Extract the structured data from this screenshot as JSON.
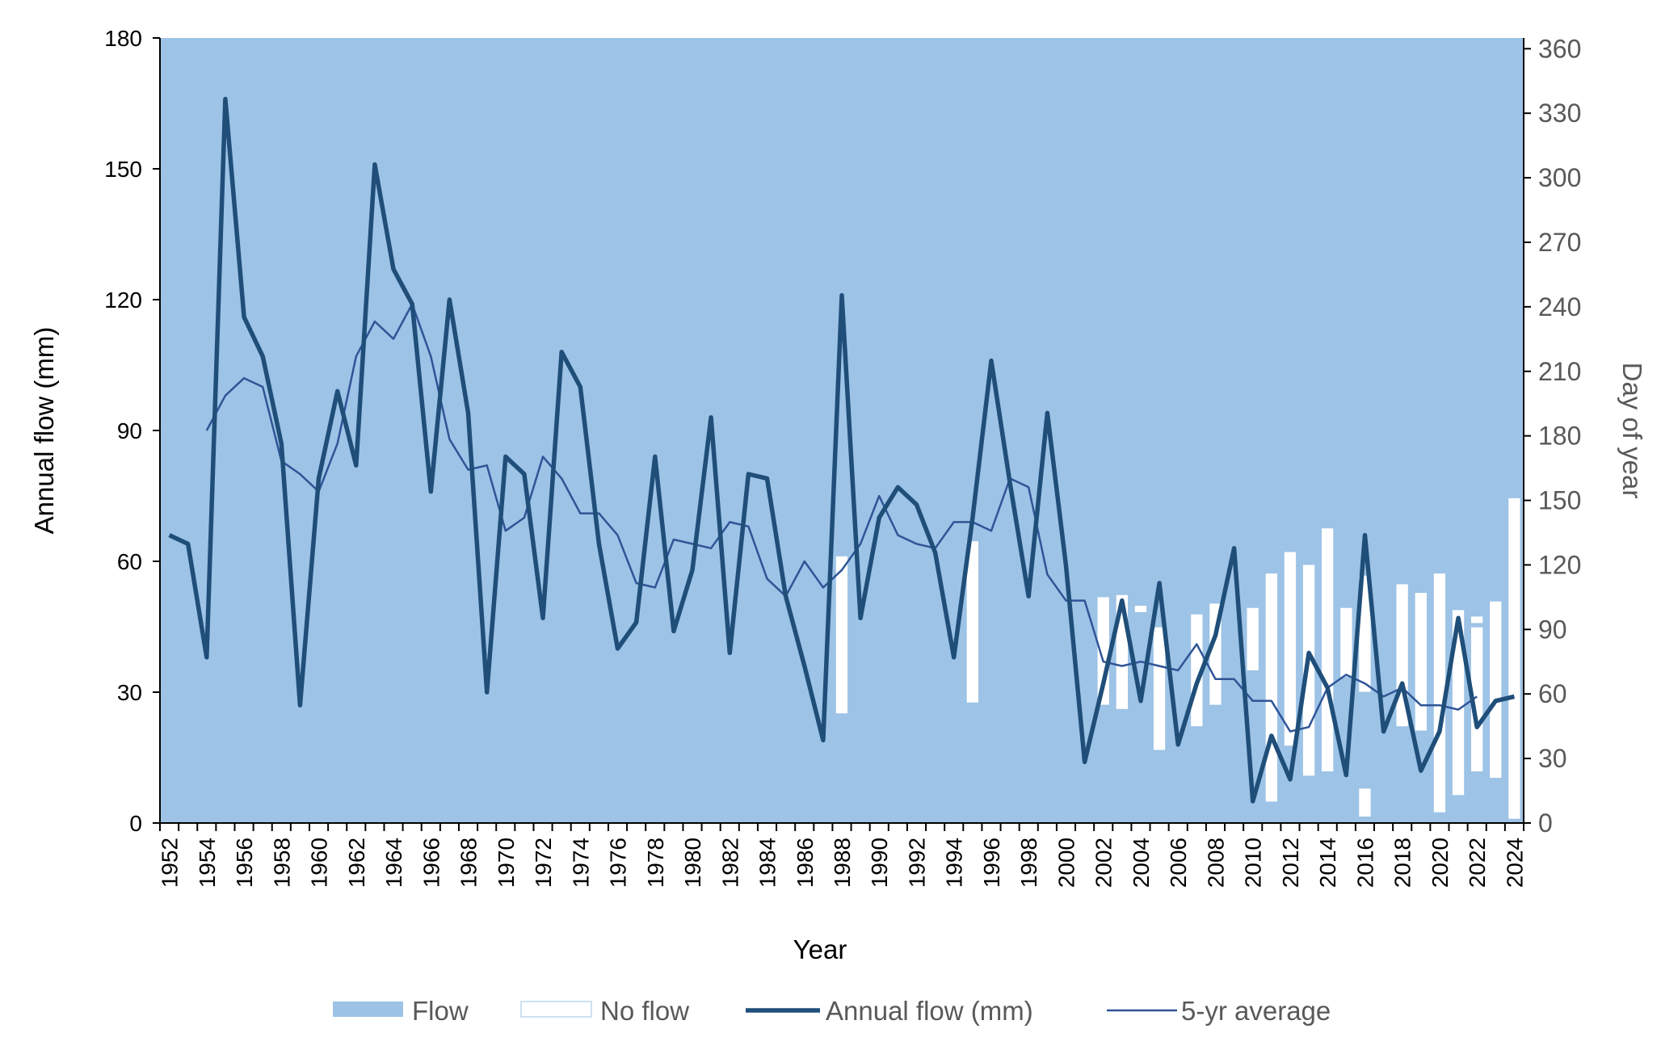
{
  "chart_data": {
    "type": "line",
    "xlabel": "Year",
    "ylabel": "Annual flow (mm)",
    "y2label": "Day of year",
    "ylim": [
      0,
      180
    ],
    "y2lim": [
      0,
      365
    ],
    "yticks": [
      "0",
      "30",
      "60",
      "90",
      "120",
      "150",
      "180"
    ],
    "y2ticks": [
      "0",
      "30",
      "60",
      "90",
      "120",
      "150",
      "180",
      "210",
      "240",
      "270",
      "300",
      "330",
      "360"
    ],
    "x": [
      1952,
      1953,
      1954,
      1955,
      1956,
      1957,
      1958,
      1959,
      1960,
      1961,
      1962,
      1963,
      1964,
      1965,
      1966,
      1967,
      1968,
      1969,
      1970,
      1971,
      1972,
      1973,
      1974,
      1975,
      1976,
      1977,
      1978,
      1979,
      1980,
      1981,
      1982,
      1983,
      1984,
      1985,
      1986,
      1987,
      1988,
      1989,
      1990,
      1991,
      1992,
      1993,
      1994,
      1995,
      1996,
      1997,
      1998,
      1999,
      2000,
      2001,
      2002,
      2003,
      2004,
      2005,
      2006,
      2007,
      2008,
      2009,
      2010,
      2011,
      2012,
      2013,
      2014,
      2015,
      2016,
      2017,
      2018,
      2019,
      2020,
      2021,
      2022,
      2023,
      2024
    ],
    "xtick_labels": [
      "1952",
      "1954",
      "1956",
      "1958",
      "1960",
      "1962",
      "1964",
      "1966",
      "1968",
      "1970",
      "1972",
      "1974",
      "1976",
      "1978",
      "1980",
      "1982",
      "1984",
      "1986",
      "1988",
      "1990",
      "1992",
      "1994",
      "1996",
      "1998",
      "2000",
      "2002",
      "2004",
      "2006",
      "2008",
      "2010",
      "2012",
      "2014",
      "2016",
      "2018",
      "2020",
      "2022",
      "2024"
    ],
    "series": [
      {
        "name": "Annual flow (mm)",
        "color": "#1f4e79",
        "axis": "left",
        "values": [
          66,
          64,
          38,
          166,
          116,
          107,
          87,
          27,
          79,
          99,
          82,
          151,
          127,
          119,
          76,
          120,
          94,
          30,
          84,
          80,
          47,
          108,
          100,
          64,
          40,
          46,
          84,
          44,
          58,
          93,
          39,
          80,
          79,
          52,
          36,
          19,
          121,
          47,
          70,
          77,
          73,
          62,
          38,
          70,
          106,
          78,
          52,
          94,
          59,
          14,
          32,
          51,
          28,
          55,
          18,
          32,
          43,
          63,
          5,
          20,
          10,
          39,
          31,
          11,
          66,
          21,
          32,
          12,
          21,
          47,
          22,
          28,
          29
        ]
      },
      {
        "name": "5-yr average",
        "color": "#2f5597",
        "axis": "left",
        "values": [
          null,
          null,
          90,
          98,
          102,
          100,
          83,
          80,
          76,
          87,
          107,
          115,
          111,
          119,
          107,
          88,
          81,
          82,
          67,
          70,
          84,
          79,
          71,
          71,
          66,
          55,
          54,
          65,
          64,
          63,
          69,
          68,
          56,
          52,
          60,
          54,
          58,
          64,
          75,
          66,
          64,
          63,
          69,
          69,
          67,
          79,
          77,
          57,
          51,
          51,
          37,
          36,
          37,
          36,
          35,
          41,
          33,
          33,
          28,
          28,
          21,
          22,
          31,
          34,
          32,
          29,
          31,
          27,
          27,
          26,
          29,
          null,
          null
        ]
      }
    ],
    "bars": {
      "name": "No flow",
      "axis": "right",
      "unit": "Day of year",
      "segments": [
        {
          "year": 1988,
          "from": 51,
          "to": 124
        },
        {
          "year": 1995,
          "from": 56,
          "to": 131
        },
        {
          "year": 2002,
          "from": 55,
          "to": 105
        },
        {
          "year": 2003,
          "from": 53,
          "to": 106
        },
        {
          "year": 2004,
          "from": 98,
          "to": 101
        },
        {
          "year": 2005,
          "from": 34,
          "to": 91
        },
        {
          "year": 2007,
          "from": 45,
          "to": 97
        },
        {
          "year": 2008,
          "from": 55,
          "to": 102
        },
        {
          "year": 2010,
          "from": 71,
          "to": 100
        },
        {
          "year": 2011,
          "from": 10,
          "to": 116
        },
        {
          "year": 2012,
          "from": 36,
          "to": 126
        },
        {
          "year": 2013,
          "from": 22,
          "to": 120
        },
        {
          "year": 2014,
          "from": 24,
          "to": 137
        },
        {
          "year": 2015,
          "from": 68,
          "to": 100
        },
        {
          "year": 2016,
          "from": 3,
          "to": 16
        },
        {
          "year": 2016,
          "from": 61,
          "to": 115
        },
        {
          "year": 2018,
          "from": 45,
          "to": 111
        },
        {
          "year": 2019,
          "from": 43,
          "to": 107
        },
        {
          "year": 2020,
          "from": 5,
          "to": 116
        },
        {
          "year": 2021,
          "from": 13,
          "to": 99
        },
        {
          "year": 2022,
          "from": 24,
          "to": 91
        },
        {
          "year": 2022,
          "from": 93,
          "to": 96
        },
        {
          "year": 2023,
          "from": 21,
          "to": 103
        },
        {
          "year": 2024,
          "from": 2,
          "to": 151
        }
      ]
    },
    "background_series": {
      "name": "Flow",
      "color": "#9dc3e6"
    },
    "legend": {
      "position": "bottom",
      "items": [
        {
          "label": "Flow",
          "kind": "swatch-fill",
          "color": "#9dc3e6"
        },
        {
          "label": "No flow",
          "kind": "swatch-outline",
          "color": "#ffffff"
        },
        {
          "label": "Annual flow (mm)",
          "kind": "line-thick",
          "color": "#1f4e79"
        },
        {
          "label": "5-yr average",
          "kind": "line-thin",
          "color": "#2f5597"
        }
      ]
    },
    "grid": false
  }
}
